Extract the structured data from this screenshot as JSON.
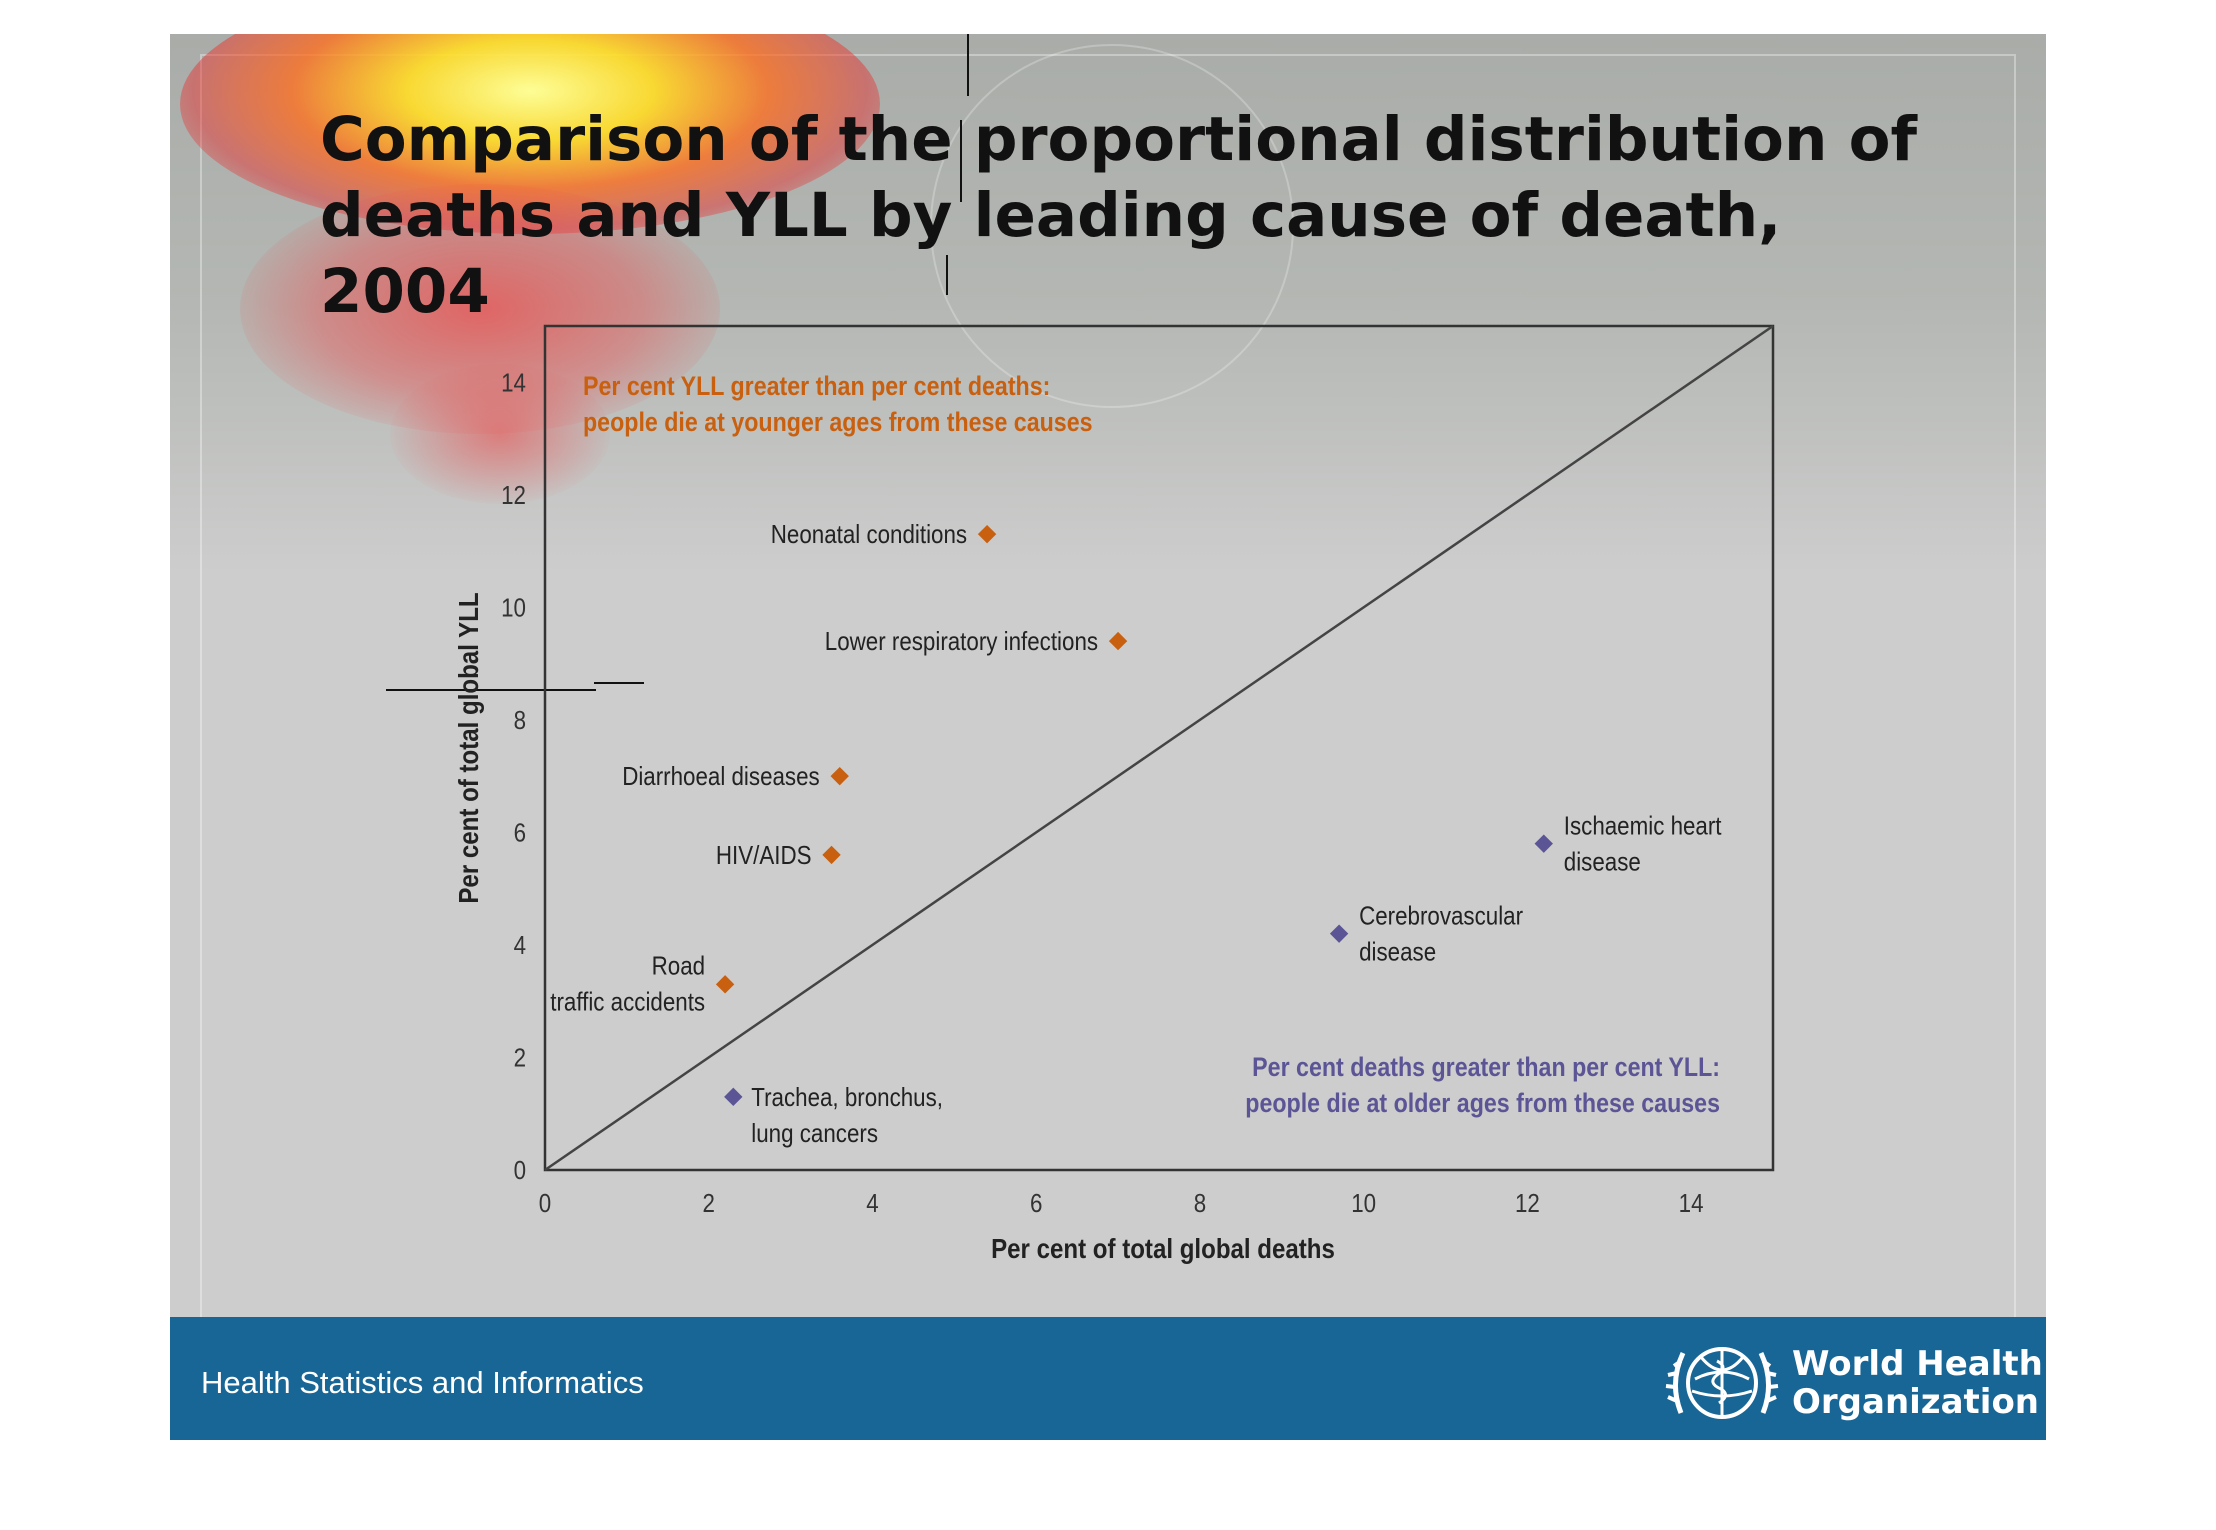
{
  "title": "Comparison of the proportional distribution of deaths and YLL by leading cause of death, 2004",
  "chart_data": {
    "type": "scatter",
    "title": "Comparison of the proportional distribution of deaths and YLL by leading cause of death, 2004",
    "xlabel": "Per cent of total global deaths",
    "ylabel": "Per cent of total global YLL",
    "xlim": [
      0,
      15
    ],
    "ylim": [
      0,
      15
    ],
    "xticks": [
      0,
      2,
      4,
      6,
      8,
      10,
      12,
      14
    ],
    "yticks": [
      0,
      2,
      4,
      6,
      8,
      10,
      12,
      14
    ],
    "reference_line": "y = x",
    "grid": false,
    "points": [
      {
        "label": [
          "Neonatal conditions"
        ],
        "x": 5.4,
        "y": 11.3,
        "group": "yll"
      },
      {
        "label": [
          "Lower respiratory infections"
        ],
        "x": 7.0,
        "y": 9.4,
        "group": "yll"
      },
      {
        "label": [
          "Diarrhoeal diseases"
        ],
        "x": 3.6,
        "y": 7.0,
        "group": "yll"
      },
      {
        "label": [
          "HIV/AIDS"
        ],
        "x": 3.5,
        "y": 5.6,
        "group": "yll"
      },
      {
        "label": [
          "Road",
          "traffic accidents"
        ],
        "x": 2.2,
        "y": 3.3,
        "group": "yll"
      },
      {
        "label": [
          "Trachea, bronchus,",
          "lung cancers"
        ],
        "x": 2.3,
        "y": 1.3,
        "group": "deaths"
      },
      {
        "label": [
          "Cerebrovascular",
          "disease"
        ],
        "x": 9.7,
        "y": 4.2,
        "group": "deaths"
      },
      {
        "label": [
          "Ischaemic heart",
          "disease"
        ],
        "x": 12.2,
        "y": 5.8,
        "group": "deaths"
      }
    ],
    "annotations": {
      "upper_left": [
        "Per cent YLL greater than per cent deaths:",
        "people die at younger ages from these causes"
      ],
      "lower_right": [
        "Per cent deaths greater than per cent YLL:",
        "people die at older ages from these causes"
      ]
    },
    "colors": {
      "yll": "#c8600f",
      "deaths": "#5b5596",
      "axis": "#333333",
      "line": "#444444",
      "plot_bg": "#cdcdcd"
    }
  },
  "footer": {
    "unit": "Health Statistics and Informatics",
    "org_line1": "World Health",
    "org_line2": "Organization",
    "logo_icon": "who-emblem-icon",
    "background": "#186695"
  }
}
